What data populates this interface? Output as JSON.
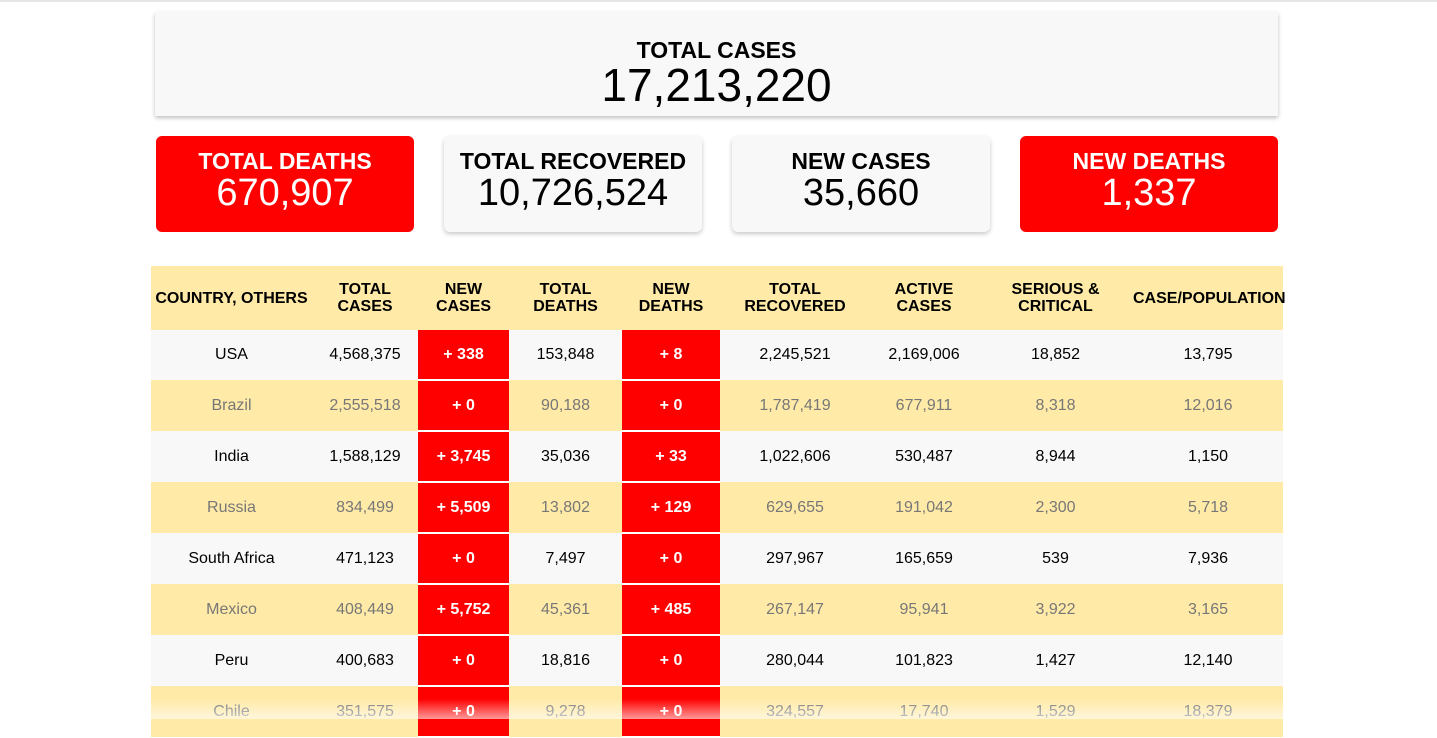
{
  "summary": {
    "total_cases": {
      "label": "TOTAL CASES",
      "value": "17,213,220"
    },
    "cards": [
      {
        "label": "TOTAL DEATHS",
        "value": "670,907",
        "style": "red"
      },
      {
        "label": "TOTAL RECOVERED",
        "value": "10,726,524",
        "style": "grey"
      },
      {
        "label": "NEW CASES",
        "value": "35,660",
        "style": "grey"
      },
      {
        "label": "NEW DEATHS",
        "value": "1,337",
        "style": "red"
      }
    ]
  },
  "table": {
    "headers": [
      {
        "line1": "COUNTRY, OTHERS",
        "line2": ""
      },
      {
        "line1": "TOTAL",
        "line2": "CASES"
      },
      {
        "line1": "NEW",
        "line2": "CASES"
      },
      {
        "line1": "TOTAL",
        "line2": "DEATHS"
      },
      {
        "line1": "NEW",
        "line2": "DEATHS"
      },
      {
        "line1": "TOTAL",
        "line2": "RECOVERED"
      },
      {
        "line1": "ACTIVE",
        "line2": "CASES"
      },
      {
        "line1": "SERIOUS &",
        "line2": "CRITICAL"
      },
      {
        "line1": "CASE/POPULATION",
        "line2": ""
      }
    ],
    "rows": [
      [
        "USA",
        "4,568,375",
        "+ 338",
        "153,848",
        "+ 8",
        "2,245,521",
        "2,169,006",
        "18,852",
        "13,795"
      ],
      [
        "Brazil",
        "2,555,518",
        "+ 0",
        "90,188",
        "+ 0",
        "1,787,419",
        "677,911",
        "8,318",
        "12,016"
      ],
      [
        "India",
        "1,588,129",
        "+ 3,745",
        "35,036",
        "+ 33",
        "1,022,606",
        "530,487",
        "8,944",
        "1,150"
      ],
      [
        "Russia",
        "834,499",
        "+ 5,509",
        "13,802",
        "+ 129",
        "629,655",
        "191,042",
        "2,300",
        "5,718"
      ],
      [
        "South Africa",
        "471,123",
        "+ 0",
        "7,497",
        "+ 0",
        "297,967",
        "165,659",
        "539",
        "7,936"
      ],
      [
        "Mexico",
        "408,449",
        "+ 5,752",
        "45,361",
        "+ 485",
        "267,147",
        "95,941",
        "3,922",
        "3,165"
      ],
      [
        "Peru",
        "400,683",
        "+ 0",
        "18,816",
        "+ 0",
        "280,044",
        "101,823",
        "1,427",
        "12,140"
      ],
      [
        "Chile",
        "351,575",
        "+ 0",
        "9,278",
        "+ 0",
        "324,557",
        "17,740",
        "1,529",
        "18,379"
      ]
    ]
  },
  "colors": {
    "alert_red": "#ff0000",
    "row_yellow": "#ffeaa7",
    "row_light": "#f8f8f8"
  }
}
